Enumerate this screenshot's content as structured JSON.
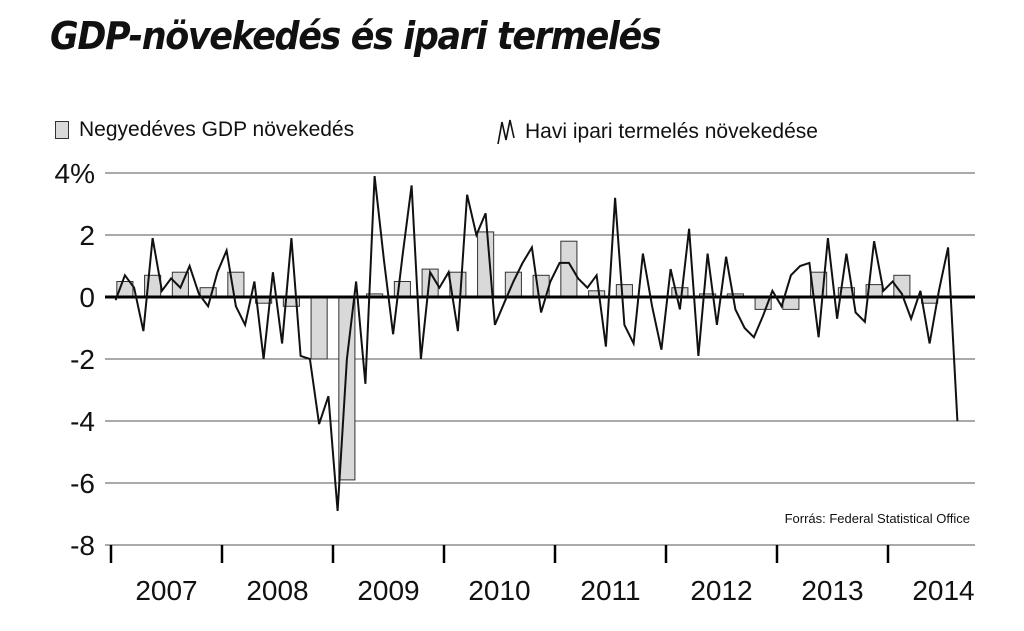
{
  "chart_data": {
    "type": "bar+line",
    "title": "GDP-növekedés és ipari termelés",
    "source": "Forrás: Federal Statistical Office",
    "ylim": [
      -8,
      4
    ],
    "y_ticks": [
      "4%",
      "2",
      "0",
      "-2",
      "-4",
      "-6",
      "-8"
    ],
    "x_ticks": [
      "2007",
      "2008",
      "2009",
      "2010",
      "2011",
      "2012",
      "2013",
      "2014"
    ],
    "grid": true,
    "legend_position": "top",
    "series": [
      {
        "name": "Negyedéves GDP növekedés",
        "kind": "bar",
        "color": "#d9d9d9",
        "quarters": [
          "2007Q1",
          "2007Q2",
          "2007Q3",
          "2007Q4",
          "2008Q1",
          "2008Q2",
          "2008Q3",
          "2008Q4",
          "2009Q1",
          "2009Q2",
          "2009Q3",
          "2009Q4",
          "2010Q1",
          "2010Q2",
          "2010Q3",
          "2010Q4",
          "2011Q1",
          "2011Q2",
          "2011Q3",
          "2011Q4",
          "2012Q1",
          "2012Q2",
          "2012Q3",
          "2012Q4",
          "2013Q1",
          "2013Q2",
          "2013Q3",
          "2013Q4",
          "2014Q1",
          "2014Q2"
        ],
        "values": [
          0.5,
          0.7,
          0.8,
          0.3,
          0.8,
          -0.2,
          -0.3,
          -2.0,
          -5.9,
          0.1,
          0.5,
          0.9,
          0.8,
          2.1,
          0.8,
          0.7,
          1.8,
          0.2,
          0.4,
          0.0,
          0.3,
          0.1,
          0.1,
          -0.4,
          -0.4,
          0.8,
          0.3,
          0.4,
          0.7,
          -0.2
        ]
      },
      {
        "name": "Havi ipari termelés növekedése",
        "kind": "line",
        "color": "#111111",
        "start_month": "2007-01",
        "values": [
          -0.1,
          0.7,
          0.3,
          -1.1,
          1.9,
          0.2,
          0.6,
          0.3,
          1.0,
          0.1,
          -0.3,
          0.8,
          1.5,
          -0.3,
          -0.9,
          0.5,
          -2.0,
          0.8,
          -1.5,
          1.9,
          -1.9,
          -2.0,
          -4.1,
          -3.2,
          -6.9,
          -2.0,
          0.5,
          -2.8,
          3.9,
          1.2,
          -1.2,
          1.3,
          3.6,
          -2.0,
          0.8,
          0.3,
          0.8,
          -1.1,
          3.3,
          2.0,
          2.7,
          -0.9,
          -0.2,
          0.5,
          1.1,
          1.6,
          -0.5,
          0.5,
          1.1,
          1.1,
          0.6,
          0.3,
          0.7,
          -1.6,
          3.2,
          -0.9,
          -1.5,
          1.4,
          -0.3,
          -1.7,
          0.9,
          -0.4,
          2.2,
          -1.9,
          1.4,
          -0.9,
          1.3,
          -0.4,
          -1.0,
          -1.3,
          -0.6,
          0.2,
          -0.3,
          0.7,
          1.0,
          1.1,
          -1.3,
          1.9,
          -0.7,
          1.4,
          -0.5,
          -0.8,
          1.8,
          0.2,
          0.5,
          0.1,
          -0.7,
          0.2,
          -1.5,
          0.2,
          1.6,
          -4.0
        ]
      }
    ]
  }
}
